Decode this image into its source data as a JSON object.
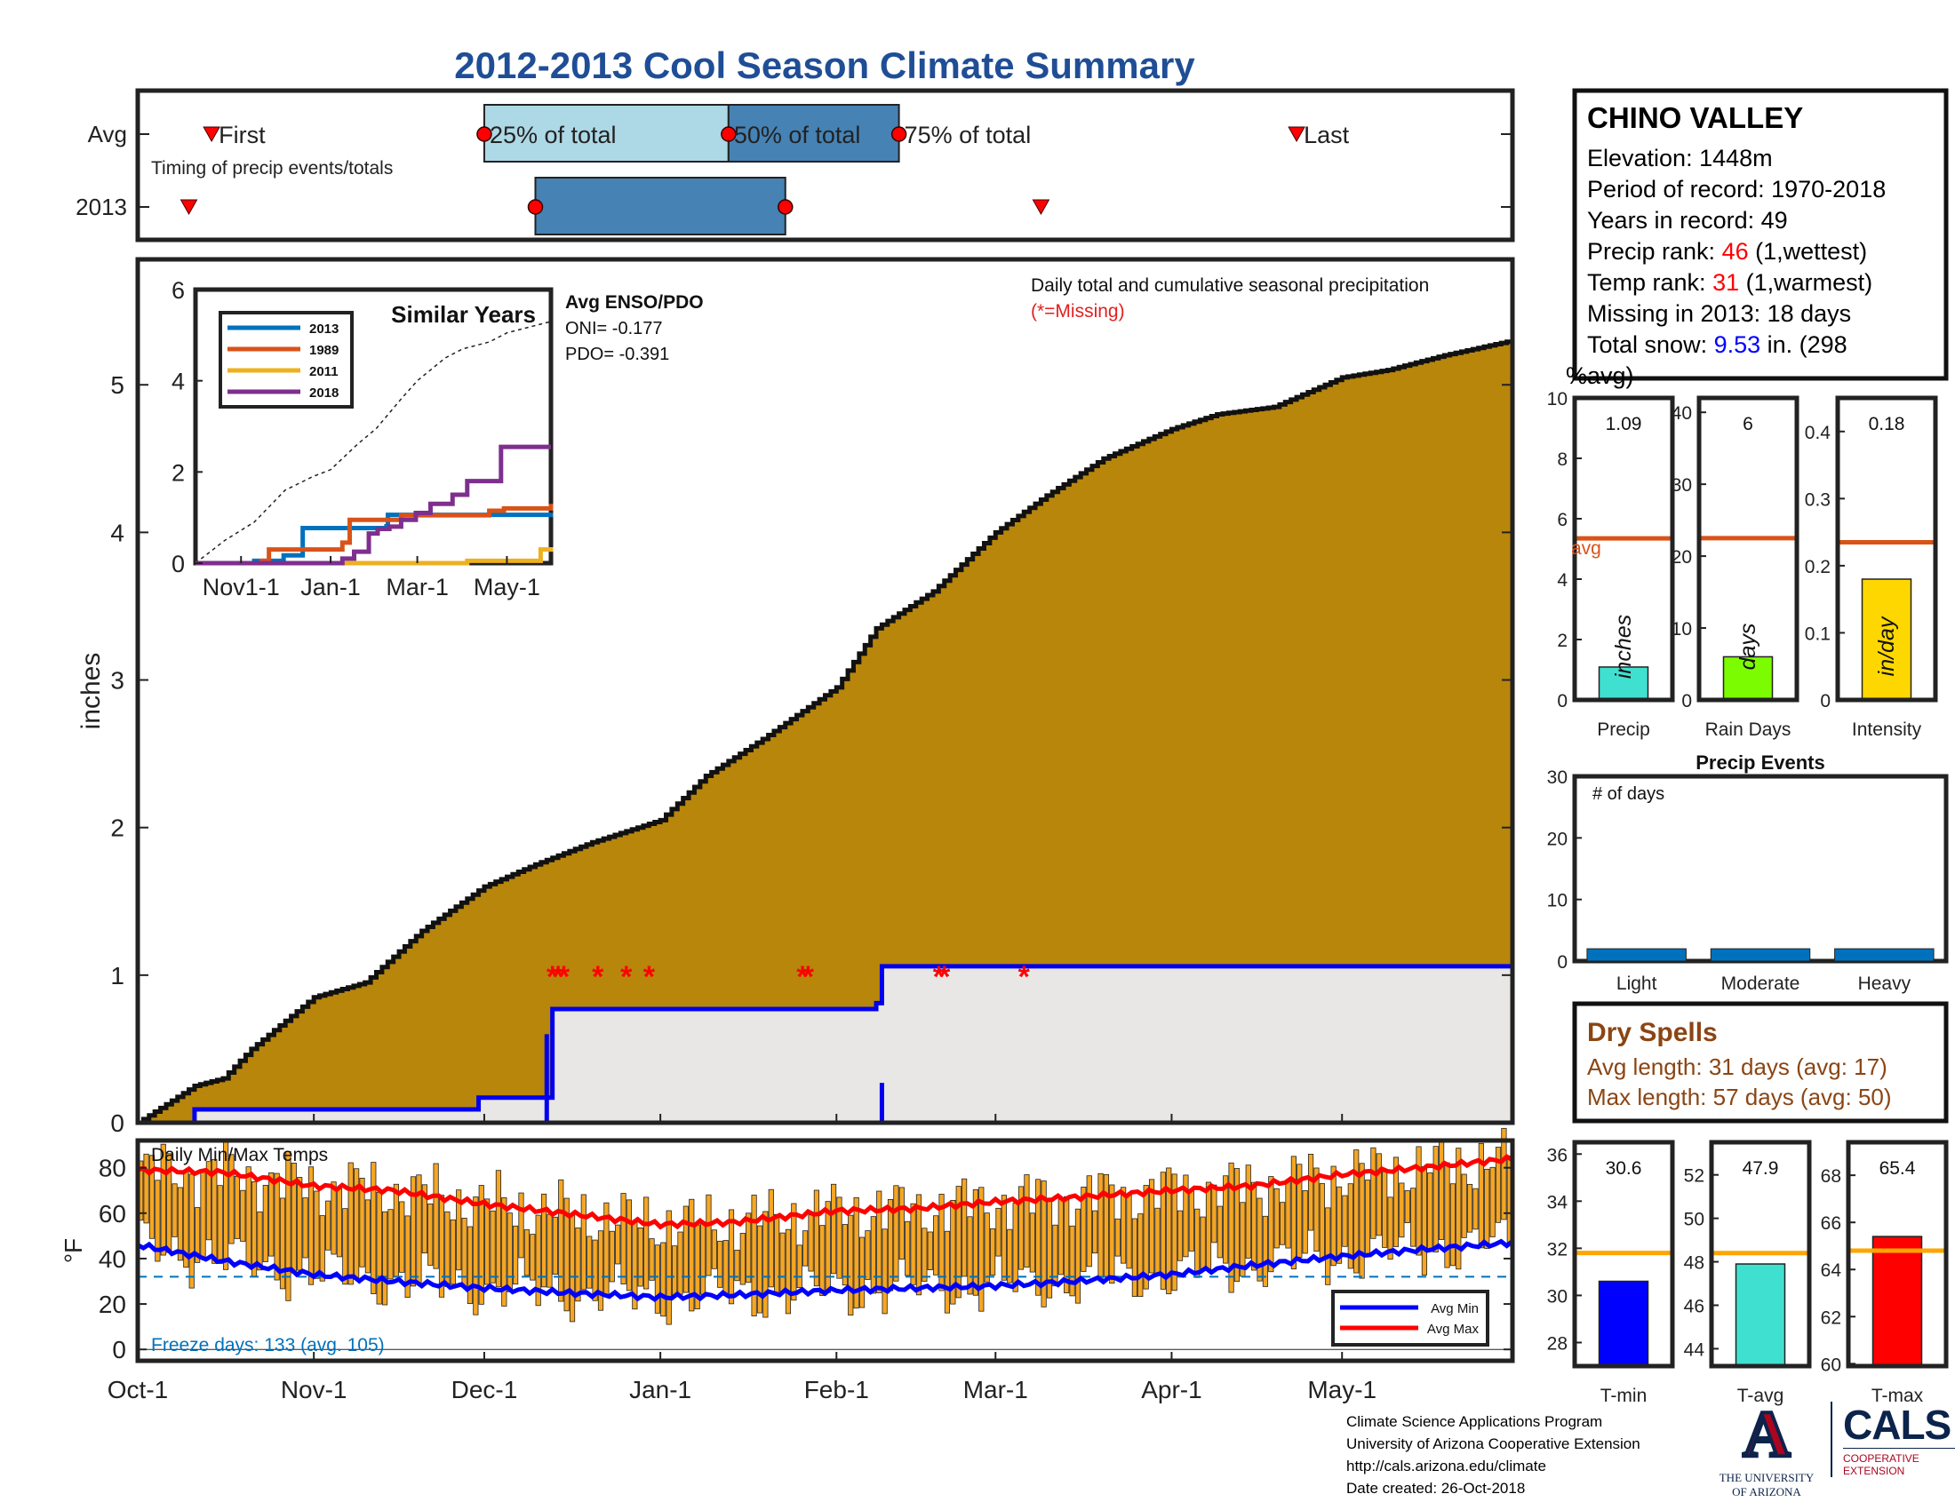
{
  "title": "2012-2013 Cool Season Climate Summary",
  "timing": {
    "rows": [
      "Avg",
      "2013"
    ],
    "note": "Timing of precip events/totals",
    "labels": {
      "first": "First",
      "p25": "25% of total",
      "p50": "50% of total",
      "p75": "75% of total",
      "last": "Last"
    },
    "avg_days": {
      "first": 13,
      "p25": 61,
      "p50": 104,
      "p75": 134,
      "last": 204
    },
    "yr_days": {
      "first": 9,
      "p25": 70,
      "p75": 114,
      "last": 159
    },
    "colors": {
      "light_box": "#ADD8E6",
      "dark_box": "#4682B4",
      "marker": "#FF0000"
    }
  },
  "station": {
    "name": "CHINO VALLEY",
    "elevation": "Elevation: 1448m",
    "period": "Period of record: 1970-2018",
    "years": "Years in record: 49",
    "precip_rank_label": "Precip rank:",
    "precip_rank_value": "46",
    "precip_rank_note": "(1,wettest)",
    "temp_rank_label": "Temp rank:",
    "temp_rank_value": "31",
    "temp_rank_note": "(1,warmest)",
    "missing": "Missing in 2013: 18 days",
    "snow_label": "Total snow:",
    "snow_value": "9.53",
    "snow_note": "in. (298",
    "snow_note2": "%avg)"
  },
  "chart_data": [
    {
      "id": "cumulative_precip",
      "type": "area",
      "title": "Daily total and cumulative seasonal precipitation",
      "subtitle": "(*=Missing)",
      "ylabel": "inches",
      "ylim": [
        0,
        5.85
      ],
      "yticks": [
        0,
        1,
        2,
        3,
        4,
        5
      ],
      "x_ticks": [
        "Oct-1",
        "Nov-1",
        "Dec-1",
        "Jan-1",
        "Feb-1",
        "Mar-1",
        "Apr-1",
        "May-1"
      ],
      "x_tick_days": [
        0,
        31,
        61,
        92,
        123,
        151,
        182,
        212
      ],
      "xlim_days": [
        0,
        242
      ],
      "avg_cumulative": {
        "days": [
          0,
          10,
          15,
          20,
          31,
          40,
          50,
          61,
          70,
          80,
          92,
          100,
          110,
          123,
          130,
          140,
          151,
          160,
          170,
          182,
          190,
          200,
          212,
          220,
          230,
          242
        ],
        "values": [
          0,
          0.25,
          0.3,
          0.5,
          0.85,
          0.95,
          1.3,
          1.6,
          1.75,
          1.9,
          2.05,
          2.35,
          2.6,
          2.95,
          3.35,
          3.6,
          4.0,
          4.25,
          4.5,
          4.7,
          4.8,
          4.85,
          5.05,
          5.1,
          5.2,
          5.3
        ]
      },
      "observed_2013": {
        "days": [
          0,
          10,
          40,
          60,
          72,
          73,
          123,
          130,
          131,
          189,
          242
        ],
        "values": [
          0,
          0.09,
          0.09,
          0.17,
          0.17,
          0.77,
          0.77,
          0.81,
          1.06,
          1.06,
          1.08
        ]
      },
      "daily_bars": [
        {
          "day": 72,
          "value": 0.6
        },
        {
          "day": 131,
          "value": 0.27
        }
      ],
      "missing_days": [
        73,
        74,
        75,
        81,
        86,
        90,
        117,
        118,
        141,
        142,
        156
      ],
      "missing_marker_value": 1.0,
      "colors": {
        "avg_fill": "#B8860B",
        "obs_fill": "#E8E7E5",
        "obs_line": "#0000EE",
        "missing": "#FF0000"
      }
    },
    {
      "id": "similar_years",
      "type": "line",
      "title": "Similar Years",
      "ylim": [
        0,
        6
      ],
      "yticks": [
        0,
        2,
        4,
        6
      ],
      "x_ticks": [
        "Nov1-1",
        "Jan-1",
        "Mar-1",
        "May-1"
      ],
      "x_tick_days": [
        31,
        92,
        151,
        212
      ],
      "xlim_days": [
        0,
        242
      ],
      "enso_title": "Avg ENSO/PDO",
      "oni": "ONI= -0.177",
      "pdo": "PDO= -0.391",
      "series": [
        {
          "name": "2013",
          "color": "#0072BD",
          "days": [
            0,
            40,
            60,
            72,
            73,
            123,
            130,
            131,
            189,
            242
          ],
          "values": [
            0,
            0.05,
            0.17,
            0.17,
            0.77,
            0.77,
            0.81,
            1.06,
            1.06,
            1.1
          ]
        },
        {
          "name": "1989",
          "color": "#D95319",
          "days": [
            0,
            45,
            50,
            100,
            105,
            130,
            140,
            200,
            210,
            242
          ],
          "values": [
            0,
            0.05,
            0.3,
            0.45,
            0.95,
            0.95,
            1.05,
            1.15,
            1.2,
            1.3
          ]
        },
        {
          "name": "2011",
          "color": "#EDB120",
          "days": [
            0,
            180,
            185,
            230,
            235,
            242
          ],
          "values": [
            0,
            0,
            0.05,
            0.05,
            0.3,
            0.35
          ]
        },
        {
          "name": "2018",
          "color": "#7E2F8E",
          "days": [
            0,
            100,
            108,
            118,
            124,
            130,
            132,
            140,
            150,
            160,
            175,
            185,
            205,
            208,
            242
          ],
          "values": [
            0,
            0.1,
            0.25,
            0.65,
            0.75,
            0.75,
            0.8,
            0.95,
            1.1,
            1.3,
            1.5,
            1.8,
            1.8,
            2.55,
            2.55
          ]
        }
      ],
      "avg_series": {
        "days": [
          0,
          20,
          40,
          61,
          80,
          92,
          110,
          123,
          140,
          151,
          170,
          182,
          200,
          212,
          230,
          242
        ],
        "values": [
          0,
          0.5,
          0.9,
          1.6,
          1.9,
          2.05,
          2.6,
          2.95,
          3.6,
          4.0,
          4.5,
          4.7,
          4.85,
          5.05,
          5.2,
          5.3
        ]
      }
    },
    {
      "id": "precip_bars",
      "type": "bar",
      "panels": [
        {
          "label": "Precip",
          "value": 1.09,
          "value_label": "1.09",
          "avg": 5.35,
          "avg_label": "avg",
          "unit": "inches",
          "ylim": [
            0,
            10
          ],
          "yticks": [
            0,
            2,
            4,
            6,
            8,
            10
          ],
          "color": "#40E0D0"
        },
        {
          "label": "Rain Days",
          "value": 6,
          "value_label": "6",
          "avg": 22.5,
          "unit": "days",
          "ylim": [
            0,
            42
          ],
          "yticks": [
            0,
            10,
            20,
            30,
            40
          ],
          "color": "#7CFC00"
        },
        {
          "label": "Intensity",
          "value": 0.18,
          "value_label": "0.18",
          "avg": 0.235,
          "unit": "in/day",
          "ylim": [
            0,
            0.45
          ],
          "yticks": [
            0,
            0.1,
            0.2,
            0.3,
            0.4
          ],
          "color": "#FFD700"
        }
      ],
      "avg_color": "#D95319"
    },
    {
      "id": "precip_events",
      "type": "bar",
      "title": "Precip Events",
      "ylabel": "# of days",
      "categories": [
        "Light",
        "Moderate",
        "Heavy"
      ],
      "values": [
        2,
        2,
        2
      ],
      "ylim": [
        0,
        30
      ],
      "yticks": [
        0,
        10,
        20,
        30
      ],
      "color": "#0072BD"
    },
    {
      "id": "daily_temps",
      "type": "bar",
      "title": "Daily Min/Max Temps",
      "ylabel": "°F",
      "ylim": [
        -5,
        92
      ],
      "yticks": [
        0,
        20,
        40,
        60,
        80
      ],
      "freeze_line": 32,
      "freeze_text": "Freeze days: 133 (avg. 105)",
      "legend": [
        "Avg Min",
        "Avg Max"
      ],
      "avg_max": {
        "days": [
          0,
          15,
          31,
          45,
          61,
          75,
          92,
          105,
          123,
          137,
          151,
          165,
          182,
          196,
          212,
          226,
          242
        ],
        "values": [
          79,
          78,
          72,
          70,
          64,
          60,
          55,
          56,
          61,
          62,
          65,
          67,
          70,
          72,
          77,
          80,
          84
        ]
      },
      "avg_min": {
        "days": [
          0,
          15,
          31,
          45,
          61,
          75,
          92,
          105,
          123,
          137,
          151,
          165,
          182,
          196,
          212,
          226,
          242
        ],
        "values": [
          46,
          39,
          33,
          30,
          27,
          25,
          23,
          24,
          26,
          27,
          28,
          30,
          33,
          37,
          41,
          44,
          47
        ]
      },
      "colors": {
        "bar": "#F5A623",
        "max": "#FF0000",
        "min": "#0000FF",
        "freeze": "#0072BD"
      }
    },
    {
      "id": "temp_bars",
      "type": "bar",
      "panels": [
        {
          "label": "T-min",
          "value": 30.6,
          "value_label": "30.6",
          "avg": 31.8,
          "ylim": [
            27,
            36.5
          ],
          "yticks": [
            28,
            30,
            32,
            34,
            36
          ],
          "color": "#0000FF"
        },
        {
          "label": "T-avg",
          "value": 47.9,
          "value_label": "47.9",
          "avg": 48.4,
          "ylim": [
            43.2,
            53.5
          ],
          "yticks": [
            44,
            46,
            48,
            50,
            52
          ],
          "color": "#40E0D0"
        },
        {
          "label": "T-max",
          "value": 65.4,
          "value_label": "65.4",
          "avg": 64.8,
          "ylim": [
            59.9,
            69.4
          ],
          "yticks": [
            60,
            62,
            64,
            66,
            68
          ],
          "color": "#FF0000"
        }
      ],
      "avg_color": "#FFA500"
    }
  ],
  "dry_spells": {
    "title": "Dry Spells",
    "avg": "Avg length: 31 days (avg: 17)",
    "max": "Max length: 57 days (avg: 50)",
    "color": "#8B4513"
  },
  "credits": {
    "line1": "Climate Science Applications Program",
    "line2": "University of Arizona Cooperative Extension",
    "line3": "http://cals.arizona.edu/climate",
    "line4": " Date created: 26-Oct-2018"
  },
  "logos": {
    "ua_letter": "A",
    "ua_line1": "THE UNIVERSITY",
    "ua_line2": "OF ARIZONA",
    "cals": "CALS",
    "cals_line1": "COOPERATIVE",
    "cals_line2": "EXTENSION",
    "ua_red": "#AB0520",
    "ua_blue": "#0C234B"
  }
}
